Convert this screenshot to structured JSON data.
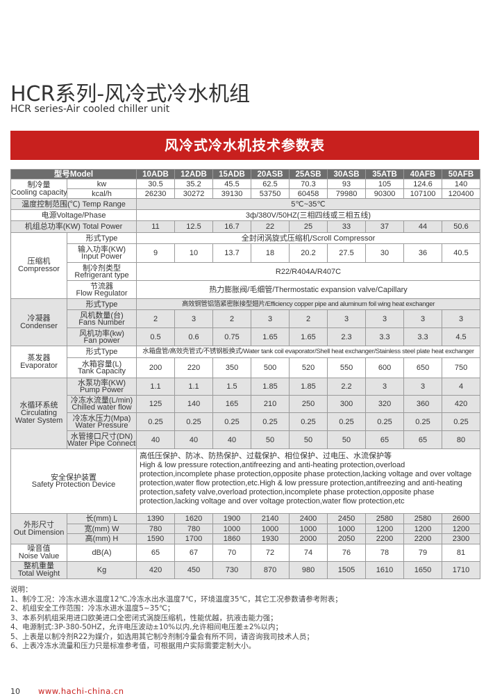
{
  "page": {
    "title": "HCR系列-风冷式冷水机组",
    "subtitle": "HCR series-Air cooled chiller unit",
    "banner": "风冷式冷水机技术参数表",
    "accent_color": "#c8201e",
    "page_number": "10",
    "url": "www.hachi-china.cn"
  },
  "spec_table": {
    "header": {
      "label": "型号Model",
      "models": [
        "10ADB",
        "12ADB",
        "15ADB",
        "20ASB",
        "25ASB",
        "30ASB",
        "35ATB",
        "40AFB",
        "50AFB"
      ]
    },
    "groups": [
      {
        "label": [
          "制冷量",
          "Cooling capacity"
        ],
        "shade": false,
        "rows": [
          {
            "label": [
              "kw"
            ],
            "values": [
              "30.5",
              "35.2",
              "45.5",
              "62.5",
              "70.3",
              "93",
              "105",
              "124.6",
              "140"
            ]
          },
          {
            "label": [
              "kcal/h"
            ],
            "values": [
              "26230",
              "30272",
              "39130",
              "53750",
              "60458",
              "79980",
              "90300",
              "107100",
              "120400"
            ]
          }
        ]
      },
      {
        "label": [
          "温度控制范围(℃) Temp Range"
        ],
        "shade": true,
        "span_value": "5℃~35℃"
      },
      {
        "label": [
          "电源Voltage/Phase"
        ],
        "shade": false,
        "span_value": "3ф/380V/50HZ(三相四线或三相五线)"
      },
      {
        "label": [
          "机组总功率(KW) Total Power"
        ],
        "shade": true,
        "values": [
          "11",
          "12.5",
          "16.7",
          "22",
          "25",
          "33",
          "37",
          "44",
          "50.6"
        ]
      },
      {
        "label": [
          "压缩机",
          "Compressor"
        ],
        "shade": false,
        "rows": [
          {
            "label": [
              "形式Type"
            ],
            "span_value": "全封闭涡旋式压缩机/Scroll Compressor"
          },
          {
            "label": [
              "输入功率(KW)",
              "Input Power"
            ],
            "values": [
              "9",
              "10",
              "13.7",
              "18",
              "20.2",
              "27.5",
              "30",
              "36",
              "40.5"
            ]
          },
          {
            "label": [
              "制冷剂类型",
              "Refrigerant type"
            ],
            "span_value": "R22/R404A/R407C"
          },
          {
            "label": [
              "节流器",
              "Flow Regulator"
            ],
            "span_value": "热力膨胀阀/毛细管/Thermostatic expansion valve/Capillary"
          }
        ]
      },
      {
        "label": [
          "冷凝器",
          "Condenser"
        ],
        "shade": true,
        "rows": [
          {
            "label": [
              "形式Type"
            ],
            "span_value": "高效铜管铝箔紧密胀接型翅片/Efficiency copper pipe and aluminum foil wing heat exchanger"
          },
          {
            "label": [
              "风机数量(台)",
              "Fans Number"
            ],
            "values": [
              "2",
              "3",
              "2",
              "3",
              "2",
              "3",
              "3",
              "3",
              "3"
            ]
          },
          {
            "label": [
              "风机功率(kw)",
              "Fan power"
            ],
            "values": [
              "0.5",
              "0.6",
              "0.75",
              "1.65",
              "1.65",
              "2.3",
              "3.3",
              "3.3",
              "4.5"
            ]
          }
        ]
      },
      {
        "label": [
          "蒸发器",
          "Evaporator"
        ],
        "shade": false,
        "rows": [
          {
            "label": [
              "形式Type"
            ],
            "span_value": "水箱盘管/高效壳管式/不锈钢板换式/Water tank coil evaporator/Shell heat exchanger/Stainless steel plate heat exchanger"
          },
          {
            "label": [
              "水箱容量(L)",
              "Tank Capacity"
            ],
            "values": [
              "200",
              "220",
              "350",
              "500",
              "520",
              "550",
              "600",
              "650",
              "750"
            ]
          }
        ]
      },
      {
        "label": [
          "水循环系统",
          "Circulating",
          "Water System"
        ],
        "shade": true,
        "rows": [
          {
            "label": [
              "水泵功率(KW)",
              "Pump Power"
            ],
            "values": [
              "1.1",
              "1.1",
              "1.5",
              "1.85",
              "1.85",
              "2.2",
              "3",
              "3",
              "4"
            ]
          },
          {
            "label": [
              "冷冻水流量(L/min)",
              "Chilled water flow"
            ],
            "values": [
              "125",
              "140",
              "165",
              "210",
              "250",
              "300",
              "320",
              "360",
              "420"
            ]
          },
          {
            "label": [
              "冷冻水压力(Mpa)",
              "Water Pressure"
            ],
            "values": [
              "0.25",
              "0.25",
              "0.25",
              "0.25",
              "0.25",
              "0.25",
              "0.25",
              "0.25",
              "0.25"
            ]
          },
          {
            "label": [
              "水管接口尺寸(DN)",
              "Water Pipe Connection"
            ],
            "values": [
              "40",
              "40",
              "40",
              "50",
              "50",
              "50",
              "65",
              "65",
              "80"
            ]
          }
        ]
      },
      {
        "label": [
          "安全保护装置",
          "Safety Protection Device"
        ],
        "shade": false,
        "span_text": [
          "高低压保护、防冰、防热保护、过载保护、相位保护、过电压、水流保护等",
          "High & low pressure rotection,antifreezing and anti-heating protection,overload protection,incomplete phase protection,opposite phase protection,lacking voltage and over voltage protection,water flow protection,etc.High & low pressure protection,antifreezing and anti-heating protection,safety valve,overload protection,incomplete phase protection,opposite phase protection,lacking voltage and over voltage protection,water flow protection,etc"
        ]
      },
      {
        "label": [
          "外形尺寸",
          "Out Dimension"
        ],
        "shade": true,
        "rows": [
          {
            "label": [
              "长(mm)  L"
            ],
            "values": [
              "1390",
              "1620",
              "1900",
              "2140",
              "2400",
              "2450",
              "2580",
              "2580",
              "2600"
            ]
          },
          {
            "label": [
              "宽(mm)  W"
            ],
            "values": [
              "780",
              "780",
              "1000",
              "1000",
              "1000",
              "1000",
              "1200",
              "1200",
              "1200"
            ]
          },
          {
            "label": [
              "高(mm)  H"
            ],
            "values": [
              "1590",
              "1700",
              "1860",
              "1930",
              "2000",
              "2050",
              "2200",
              "2200",
              "2300"
            ]
          }
        ]
      },
      {
        "label": [
          "噪音值",
          "Noise Value"
        ],
        "shade": false,
        "rows": [
          {
            "label": [
              "dB(A)"
            ],
            "values": [
              "65",
              "67",
              "70",
              "72",
              "74",
              "76",
              "78",
              "79",
              "81"
            ]
          }
        ]
      },
      {
        "label": [
          "整机重量",
          "Total Weight"
        ],
        "shade": true,
        "rows": [
          {
            "label": [
              "Kg"
            ],
            "values": [
              "420",
              "450",
              "730",
              "870",
              "980",
              "1505",
              "1610",
              "1650",
              "1710"
            ]
          }
        ]
      }
    ]
  },
  "notes": {
    "heading": "说明：",
    "items": [
      "1、制冷工况：冷冻水进水温度12℃,冷冻水出水温度7℃，环境温度35℃，其它工况参数请参考附表；",
      "2、机组安全工作范围：冷冻水进水温度5~35℃；",
      "3、本系列机组采用进口欧美进口全密闭式涡旋压缩机，性能优越，抗液击能力强；",
      "4、电源制式:3P-380-50HZ，允许电压波动±10%以内,允许相间电压差±2%以内；",
      "5、上表是以制冷剂R22为媒介，如选用其它制冷剂制冷量会有所不同，请咨询我司技术人员；",
      "6、上表冷冻水流量和压力只是标准参考值，可根据用户实际需要定制大小。"
    ]
  }
}
